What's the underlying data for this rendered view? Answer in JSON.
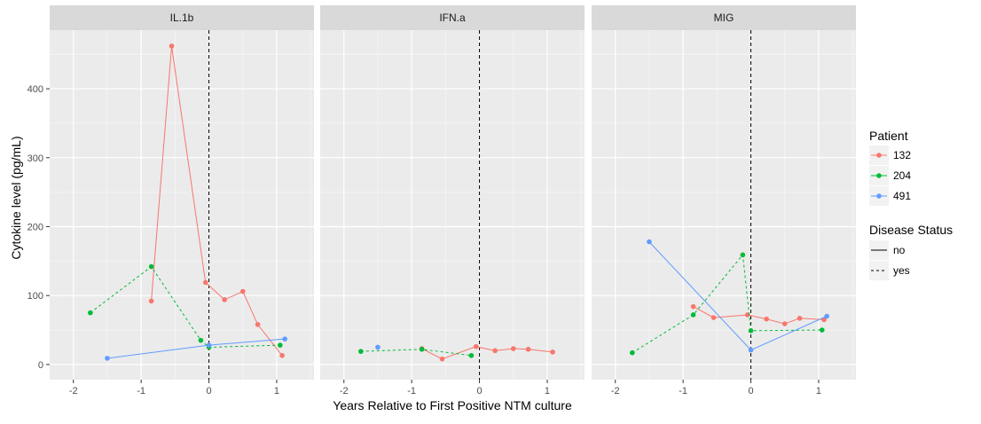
{
  "chart_data": {
    "type": "line",
    "title": "",
    "xlabel": "Years Relative to First Positive NTM culture",
    "ylabel": "Cytokine level (pg/mL)",
    "xlim": [
      -2.35,
      1.55
    ],
    "ylim": [
      -22,
      485
    ],
    "x_ticks": [
      -2,
      -1,
      0,
      1
    ],
    "y_ticks": [
      0,
      100,
      200,
      300,
      400
    ],
    "grid": true,
    "vline_x": 0,
    "legend": {
      "placement": "right",
      "patient_title": "Patient",
      "patients": [
        {
          "name": "132",
          "color": "#F8766D"
        },
        {
          "name": "204",
          "color": "#00BA38"
        },
        {
          "name": "491",
          "color": "#619CFF"
        }
      ],
      "status_title": "Disease Status",
      "statuses": [
        {
          "name": "no",
          "dash": "none"
        },
        {
          "name": "yes",
          "dash": "3,3"
        }
      ]
    },
    "panels": [
      {
        "strip": "IL.1b",
        "segments": [
          {
            "patient": "132",
            "status": "no",
            "points": [
              [
                -0.85,
                92
              ],
              [
                -0.55,
                462
              ],
              [
                -0.05,
                119
              ],
              [
                0.23,
                94
              ],
              [
                0.5,
                106
              ],
              [
                0.72,
                58
              ],
              [
                1.08,
                13
              ]
            ]
          },
          {
            "patient": "204",
            "status": "yes",
            "points": [
              [
                -1.75,
                75
              ],
              [
                -0.85,
                142
              ],
              [
                -0.12,
                35
              ],
              [
                0,
                25
              ],
              [
                1.05,
                28
              ]
            ]
          },
          {
            "patient": "491",
            "status": "no",
            "points": [
              [
                -1.5,
                9
              ],
              [
                0,
                28
              ],
              [
                1.12,
                37
              ]
            ]
          }
        ]
      },
      {
        "strip": "IFN.a",
        "segments": [
          {
            "patient": "132",
            "status": "no",
            "points": [
              [
                -0.85,
                23
              ],
              [
                -0.55,
                8
              ],
              [
                -0.05,
                26
              ],
              [
                0.23,
                20
              ],
              [
                0.5,
                23
              ],
              [
                0.72,
                22
              ],
              [
                1.08,
                18
              ]
            ]
          },
          {
            "patient": "204",
            "status": "yes",
            "points": [
              [
                -1.75,
                19
              ],
              [
                -0.85,
                22
              ],
              [
                -0.12,
                13
              ]
            ]
          },
          {
            "patient": "491",
            "status": "no",
            "points": [
              [
                -1.5,
                25
              ]
            ]
          }
        ]
      },
      {
        "strip": "MIG",
        "segments": [
          {
            "patient": "132",
            "status": "no",
            "points": [
              [
                -0.85,
                84
              ],
              [
                -0.55,
                68
              ],
              [
                -0.05,
                72
              ],
              [
                0.23,
                66
              ],
              [
                0.5,
                59
              ],
              [
                0.72,
                67
              ],
              [
                1.08,
                65
              ]
            ]
          },
          {
            "patient": "204",
            "status": "yes",
            "points": [
              [
                -1.75,
                17
              ],
              [
                -0.85,
                72
              ],
              [
                -0.12,
                159
              ],
              [
                0,
                49
              ],
              [
                1.05,
                50
              ]
            ]
          },
          {
            "patient": "491",
            "status": "no",
            "points": [
              [
                -1.5,
                178
              ],
              [
                0,
                21
              ],
              [
                1.12,
                70
              ]
            ]
          }
        ]
      }
    ]
  }
}
